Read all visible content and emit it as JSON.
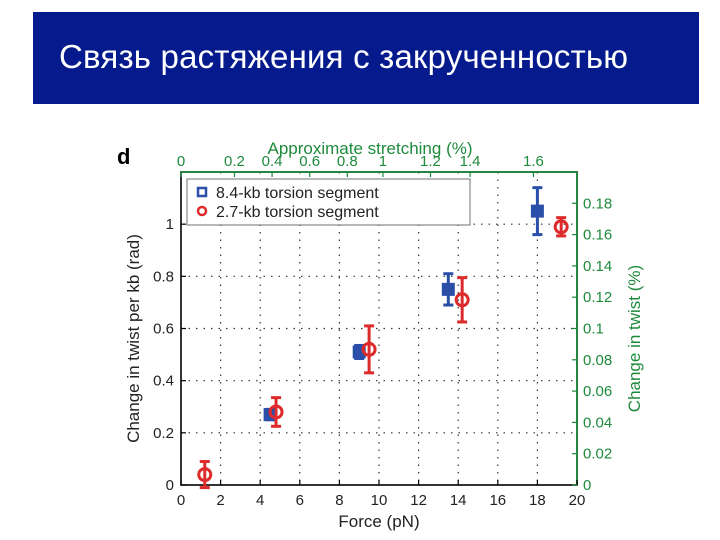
{
  "slide": {
    "title": "Связь растяжения с закрученностью"
  },
  "panel": {
    "letter": "d"
  },
  "colors": {
    "title_bg": "#051a8c",
    "series_blue": "#2a4fa8",
    "series_red": "#dd2b2b",
    "top_axis": "#1e8a3c",
    "right_axis": "#1e8a3c"
  },
  "chart_data": {
    "type": "scatter",
    "xlabel": "Force (pN)",
    "ylabel": "Change in twist per kb (rad)",
    "top_xlabel": "Approximate stretching (%)",
    "right_ylabel": "Change in twist (%)",
    "xlim": [
      0,
      20
    ],
    "ylim": [
      0,
      1.2
    ],
    "x_ticks": [
      "0",
      "2",
      "4",
      "6",
      "8",
      "10",
      "12",
      "14",
      "16",
      "18",
      "20"
    ],
    "y_ticks": [
      "0",
      "0.2",
      "0.4",
      "0.6",
      "0.8",
      "1"
    ],
    "top_ticks": [
      {
        "label": "0",
        "x": 0
      },
      {
        "label": "0.2",
        "x": 2.7
      },
      {
        "label": "0.4",
        "x": 4.6
      },
      {
        "label": "0.6",
        "x": 6.5
      },
      {
        "label": "0.8",
        "x": 8.4
      },
      {
        "label": "1",
        "x": 10.2
      },
      {
        "label": "1.2",
        "x": 12.6
      },
      {
        "label": "1.4",
        "x": 14.6
      },
      {
        "label": "1.6",
        "x": 17.8
      }
    ],
    "right_ticks": [
      {
        "label": "0",
        "y": 0
      },
      {
        "label": "0.02",
        "y": 0.12
      },
      {
        "label": "0.04",
        "y": 0.24
      },
      {
        "label": "0.06",
        "y": 0.36
      },
      {
        "label": "0.08",
        "y": 0.48
      },
      {
        "label": "0.1",
        "y": 0.6
      },
      {
        "label": "0.12",
        "y": 0.72
      },
      {
        "label": "0.14",
        "y": 0.84
      },
      {
        "label": "0.16",
        "y": 0.96
      },
      {
        "label": "0.18",
        "y": 1.08
      }
    ],
    "grid": true,
    "legend_position": "top-left",
    "series": [
      {
        "name": "8.4-kb torsion segment",
        "marker": "square",
        "color": "#2a4fa8",
        "points": [
          {
            "x": 4.5,
            "y": 0.27,
            "err": 0.02
          },
          {
            "x": 9.0,
            "y": 0.51,
            "err": 0.025
          },
          {
            "x": 13.5,
            "y": 0.75,
            "err": 0.06
          },
          {
            "x": 18.0,
            "y": 1.05,
            "err": 0.09
          }
        ]
      },
      {
        "name": "2.7-kb torsion segment",
        "marker": "circle",
        "color": "#dd2b2b",
        "points": [
          {
            "x": 1.2,
            "y": 0.04,
            "err": 0.05
          },
          {
            "x": 4.8,
            "y": 0.28,
            "err": 0.055
          },
          {
            "x": 9.5,
            "y": 0.52,
            "err": 0.09
          },
          {
            "x": 14.2,
            "y": 0.71,
            "err": 0.085
          },
          {
            "x": 19.2,
            "y": 0.99,
            "err": 0.035
          }
        ]
      }
    ]
  }
}
